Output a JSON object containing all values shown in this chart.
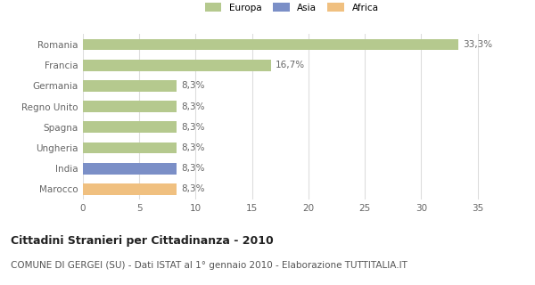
{
  "categories": [
    "Romania",
    "Francia",
    "Germania",
    "Regno Unito",
    "Spagna",
    "Ungheria",
    "India",
    "Marocco"
  ],
  "values": [
    33.3,
    16.7,
    8.3,
    8.3,
    8.3,
    8.3,
    8.3,
    8.3
  ],
  "labels": [
    "33,3%",
    "16,7%",
    "8,3%",
    "8,3%",
    "8,3%",
    "8,3%",
    "8,3%",
    "8,3%"
  ],
  "colors": [
    "#b5c98e",
    "#b5c98e",
    "#b5c98e",
    "#b5c98e",
    "#b5c98e",
    "#b5c98e",
    "#7b8fc7",
    "#f0c080"
  ],
  "legend_labels": [
    "Europa",
    "Asia",
    "Africa"
  ],
  "legend_colors": [
    "#b5c98e",
    "#7b8fc7",
    "#f0c080"
  ],
  "xlim": [
    0,
    37
  ],
  "xticks": [
    0,
    5,
    10,
    15,
    20,
    25,
    30,
    35
  ],
  "title": "Cittadini Stranieri per Cittadinanza - 2010",
  "subtitle": "COMUNE DI GERGEI (SU) - Dati ISTAT al 1° gennaio 2010 - Elaborazione TUTTITALIA.IT",
  "title_fontsize": 9,
  "subtitle_fontsize": 7.5,
  "label_fontsize": 7.5,
  "tick_fontsize": 7.5,
  "background_color": "#ffffff",
  "grid_color": "#dddddd",
  "bar_height": 0.55
}
